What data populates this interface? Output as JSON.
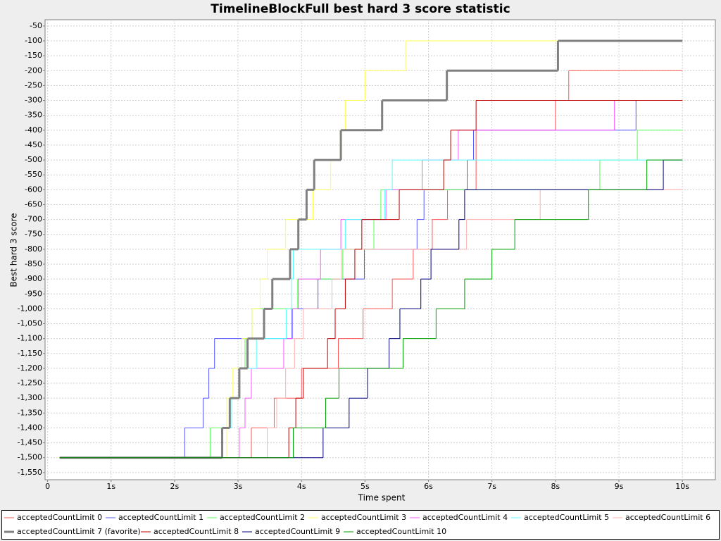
{
  "chart_data": {
    "type": "step",
    "title": "TimelineBlockFull best hard 3 score statistic",
    "x_label": "Time spent",
    "y_label": "Best hard 3 score",
    "xlim": [
      -0.04,
      10.52
    ],
    "ylim": [
      -1574,
      -29
    ],
    "grid": true,
    "legend": "bottom",
    "xticks": [
      0,
      {
        "value": 1,
        "label": "1s"
      },
      {
        "value": 2,
        "label": "2s"
      },
      {
        "value": 3,
        "label": "3s"
      },
      {
        "value": 4,
        "label": "4s"
      },
      {
        "value": 5,
        "label": "5s"
      },
      {
        "value": 6,
        "label": "6s"
      },
      {
        "value": 7,
        "label": "7s"
      },
      {
        "value": 8,
        "label": "8s"
      },
      {
        "value": 9,
        "label": "9s"
      },
      {
        "value": 10,
        "label": "10s"
      }
    ],
    "yticks": [
      -50,
      -100,
      -150,
      -200,
      -250,
      -300,
      -350,
      -400,
      -450,
      -500,
      -550,
      -600,
      -650,
      -700,
      -750,
      -800,
      -850,
      -900,
      -950,
      {
        "value": -1000,
        "label": "-1,000"
      },
      {
        "value": -1050,
        "label": "-1,050"
      },
      {
        "value": -1100,
        "label": "-1,100"
      },
      {
        "value": -1150,
        "label": "-1,150"
      },
      {
        "value": -1200,
        "label": "-1,200"
      },
      {
        "value": -1250,
        "label": "-1,250"
      },
      {
        "value": -1300,
        "label": "-1,300"
      },
      {
        "value": -1350,
        "label": "-1,350"
      },
      {
        "value": -1400,
        "label": "-1,400"
      },
      {
        "value": -1450,
        "label": "-1,450"
      },
      {
        "value": -1500,
        "label": "-1,500"
      },
      {
        "value": -1550,
        "label": "-1,550"
      }
    ],
    "series": [
      {
        "name": "acceptedCountLimit 0",
        "color": "#ff5555",
        "width": 1,
        "x": [
          0.19,
          3.21,
          3.57,
          4.0,
          4.58,
          4.97,
          5.43,
          5.76,
          6.06,
          6.3,
          6.75,
          8.0,
          8.21,
          10.0
        ],
        "values": [
          -1500,
          -1400,
          -1300,
          -1200,
          -1100,
          -1000,
          -900,
          -800,
          -700,
          -600,
          -400,
          -300,
          -200,
          -200
        ]
      },
      {
        "name": "acceptedCountLimit 1",
        "color": "#5555ff",
        "width": 1,
        "x": [
          0.19,
          2.16,
          2.45,
          2.54,
          2.63,
          3.85,
          4.26,
          4.99,
          5.82,
          5.93,
          6.61,
          6.71,
          9.27,
          10.0
        ],
        "values": [
          -1500,
          -1400,
          -1300,
          -1200,
          -1100,
          -1000,
          -900,
          -800,
          -700,
          -600,
          -500,
          -400,
          -300,
          -300
        ]
      },
      {
        "name": "acceptedCountLimit 2",
        "color": "#55ff55",
        "width": 1,
        "x": [
          0.19,
          2.56,
          2.87,
          3.03,
          3.11,
          3.22,
          3.94,
          4.65,
          5.14,
          5.25,
          8.7,
          9.29,
          10.0
        ],
        "values": [
          -1500,
          -1400,
          -1300,
          -1200,
          -1100,
          -1000,
          -900,
          -800,
          -700,
          -600,
          -500,
          -400,
          -400
        ]
      },
      {
        "name": "acceptedCountLimit 3",
        "color": "#ffff55",
        "width": 1,
        "x": [
          0.19,
          2.82,
          2.92,
          3.06,
          3.22,
          3.35,
          3.46,
          3.75,
          4.18,
          4.46,
          4.61,
          4.69,
          5.0,
          5.64,
          10.0
        ],
        "values": [
          -1500,
          -1300,
          -1200,
          -1100,
          -1000,
          -900,
          -800,
          -700,
          -600,
          -500,
          -400,
          -300,
          -200,
          -100,
          -100
        ]
      },
      {
        "name": "acceptedCountLimit 4",
        "color": "#ff55ff",
        "width": 1,
        "x": [
          0.19,
          3.02,
          3.11,
          3.21,
          3.72,
          3.86,
          3.95,
          4.3,
          4.62,
          5.33,
          5.9,
          6.47,
          8.93,
          10.0
        ],
        "values": [
          -1500,
          -1400,
          -1300,
          -1200,
          -1100,
          -1000,
          -900,
          -800,
          -700,
          -600,
          -500,
          -400,
          -300,
          -300
        ]
      },
      {
        "name": "acceptedCountLimit 5",
        "color": "#55ffff",
        "width": 1,
        "x": [
          0.19,
          2.75,
          2.9,
          3.02,
          3.29,
          3.76,
          3.84,
          3.87,
          4.69,
          5.31,
          5.43,
          10.0
        ],
        "values": [
          -1500,
          -1400,
          -1300,
          -1200,
          -1100,
          -1000,
          -900,
          -800,
          -700,
          -600,
          -500,
          -500
        ]
      },
      {
        "name": "acceptedCountLimit 6",
        "color": "#ffafaf",
        "width": 1,
        "x": [
          0.19,
          3.46,
          3.61,
          3.75,
          3.89,
          4.03,
          4.48,
          4.63,
          6.6,
          7.76,
          10.0
        ],
        "values": [
          -1500,
          -1400,
          -1300,
          -1200,
          -1100,
          -1000,
          -900,
          -800,
          -700,
          -600,
          -600
        ]
      },
      {
        "name": "acceptedCountLimit 7 (favorite)",
        "color": "#808080",
        "width": 3,
        "x": [
          0.19,
          2.75,
          2.87,
          3.02,
          3.15,
          3.41,
          3.54,
          3.82,
          3.95,
          4.08,
          4.2,
          4.62,
          5.27,
          6.29,
          8.04,
          10.0
        ],
        "values": [
          -1500,
          -1400,
          -1300,
          -1200,
          -1100,
          -1000,
          -900,
          -800,
          -700,
          -600,
          -500,
          -400,
          -300,
          -200,
          -100,
          -100
        ]
      },
      {
        "name": "acceptedCountLimit 8",
        "color": "#c00000",
        "width": 1,
        "x": [
          0.19,
          3.8,
          3.91,
          4.03,
          4.41,
          4.53,
          4.69,
          4.84,
          4.95,
          5.54,
          6.24,
          6.35,
          6.75,
          10.0
        ],
        "values": [
          -1500,
          -1400,
          -1300,
          -1200,
          -1100,
          -1000,
          -900,
          -800,
          -700,
          -600,
          -500,
          -400,
          -300,
          -300
        ]
      },
      {
        "name": "acceptedCountLimit 9",
        "color": "#000080",
        "width": 1,
        "x": [
          0.19,
          4.34,
          4.75,
          5.04,
          5.38,
          5.55,
          5.88,
          6.04,
          6.48,
          6.57,
          9.7,
          10.0
        ],
        "values": [
          -1500,
          -1400,
          -1300,
          -1200,
          -1100,
          -1000,
          -900,
          -800,
          -700,
          -600,
          -500,
          -500
        ]
      },
      {
        "name": "acceptedCountLimit 10",
        "color": "#00a000",
        "width": 1,
        "x": [
          0.19,
          3.87,
          4.38,
          4.59,
          5.6,
          6.12,
          6.57,
          7.0,
          7.36,
          8.52,
          9.44,
          10.0
        ],
        "values": [
          -1500,
          -1400,
          -1300,
          -1200,
          -1100,
          -1000,
          -900,
          -800,
          -700,
          -600,
          -500,
          -500
        ]
      }
    ]
  }
}
